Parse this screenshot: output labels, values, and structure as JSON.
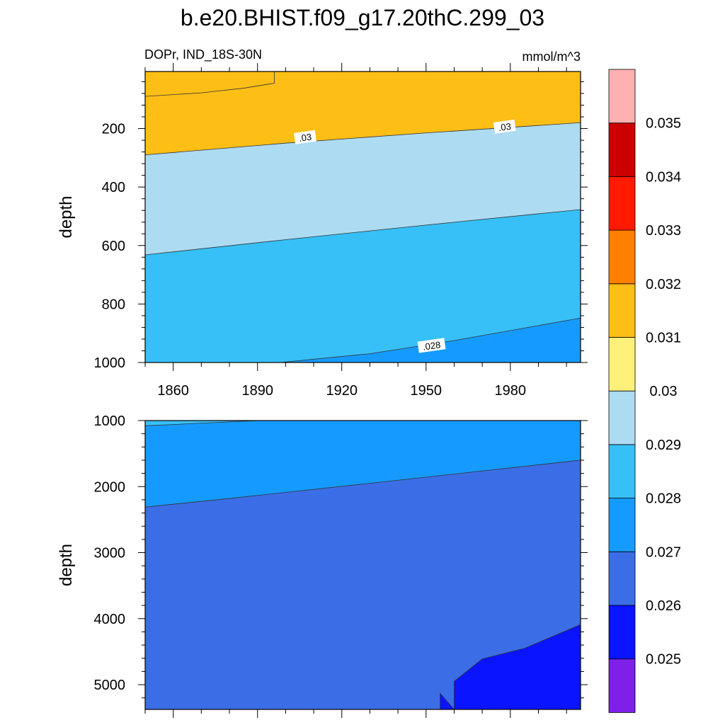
{
  "chart_data": {
    "type": "contour",
    "title": "b.e20.BHIST.f09_g17.20thC.299_03",
    "variable": "DOPr, IND_18S-30N",
    "units": "mmol/m^3",
    "x_ticks": [
      1860,
      1890,
      1920,
      1950,
      1980
    ],
    "x_range": [
      1850,
      2005
    ],
    "colorbar": {
      "levels": [
        "0.025",
        "0.026",
        "0.027",
        "0.028",
        "0.029",
        "0.03",
        "0.031",
        "0.032",
        "0.033",
        "0.034",
        "0.035"
      ],
      "colors": [
        "#7f20e8",
        "#0a14ff",
        "#3b6ee6",
        "#159bff",
        "#36c0f7",
        "#addbf2",
        "#fff07a",
        "#fdbe16",
        "#ff7f00",
        "#ff1a00",
        "#cc0000",
        "#ffb1b1"
      ]
    },
    "panels": [
      {
        "name": "upper",
        "ylabel": "depth",
        "y_range": [
          5,
          1000
        ],
        "y_ticks": [
          200,
          400,
          600,
          800,
          1000
        ],
        "contour_labels": [
          {
            "text": ".03",
            "x": 1907,
            "y": 232
          },
          {
            "text": ".03",
            "x": 1978,
            "y": 196
          },
          {
            "text": ".028",
            "x": 1952,
            "y": 944
          }
        ],
        "boundaries": [
          {
            "level": "0.031",
            "points": [
              [
                1850,
                90
              ],
              [
                1870,
                78
              ],
              [
                1885,
                62
              ],
              [
                1896,
                45
              ],
              [
                1896,
                5
              ]
            ]
          },
          {
            "level": "0.03",
            "points": [
              [
                1850,
                290
              ],
              [
                1900,
                250
              ],
              [
                1950,
                215
              ],
              [
                2005,
                180
              ]
            ]
          },
          {
            "level": "0.029",
            "points": [
              [
                1850,
                632
              ],
              [
                1900,
                580
              ],
              [
                1950,
                530
              ],
              [
                2005,
                477
              ]
            ]
          },
          {
            "level": "0.028",
            "points": [
              [
                1898,
                1000
              ],
              [
                1930,
                970
              ],
              [
                1960,
                925
              ],
              [
                2005,
                848
              ]
            ]
          }
        ]
      },
      {
        "name": "lower",
        "ylabel": "depth",
        "y_range": [
          1000,
          5375
        ],
        "y_ticks": [
          1000,
          2000,
          3000,
          4000,
          5000
        ],
        "boundaries": [
          {
            "level": "0.028",
            "points": [
              [
                1850,
                1080
              ],
              [
                1890,
                1000
              ]
            ]
          },
          {
            "level": "0.027",
            "points": [
              [
                1850,
                2310
              ],
              [
                1880,
                2180
              ],
              [
                1930,
                1950
              ],
              [
                2005,
                1600
              ]
            ]
          },
          {
            "level": "0.026",
            "points": [
              [
                1955,
                5130
              ],
              [
                1960,
                5375
              ],
              [
                1960,
                4950
              ],
              [
                1970,
                4610
              ],
              [
                1985,
                4450
              ],
              [
                2005,
                4090
              ]
            ]
          }
        ]
      }
    ]
  }
}
